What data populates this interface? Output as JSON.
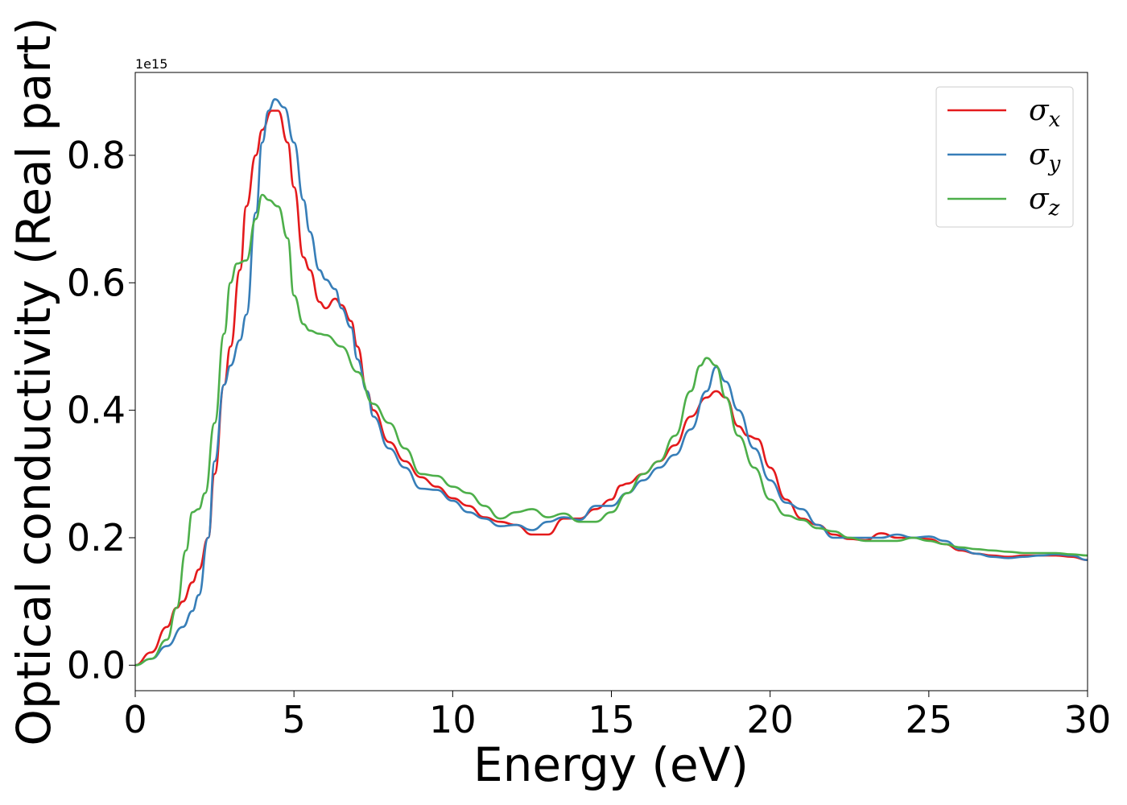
{
  "chart_data": {
    "type": "line",
    "title": "",
    "xlabel": "Energy (eV)",
    "ylabel": "Optical conductivity (Real part)",
    "y_offset_label": "1e15",
    "xlim": [
      0,
      30
    ],
    "ylim": [
      -0.04,
      0.93
    ],
    "xticks": [
      0,
      5,
      10,
      15,
      20,
      25,
      30
    ],
    "xtick_labels": [
      "0",
      "5",
      "10",
      "15",
      "20",
      "25",
      "30"
    ],
    "yticks": [
      0.0,
      0.2,
      0.4,
      0.6,
      0.8
    ],
    "ytick_labels": [
      "0.0",
      "0.2",
      "0.4",
      "0.6",
      "0.8"
    ],
    "grid": false,
    "legend_position": "top-right",
    "colors": {
      "x": "#e41a1c",
      "y": "#377eb8",
      "z": "#4daf4a"
    },
    "series": [
      {
        "key": "x",
        "name": "σx",
        "symbol": "σ",
        "subscript": "x",
        "x": [
          0,
          0.5,
          1.0,
          1.3,
          1.5,
          1.8,
          2.0,
          2.3,
          2.5,
          2.8,
          3.0,
          3.3,
          3.5,
          3.8,
          4.0,
          4.3,
          4.5,
          4.8,
          5.0,
          5.3,
          5.5,
          5.8,
          6.0,
          6.3,
          6.5,
          6.8,
          7.0,
          7.3,
          7.5,
          8.0,
          8.5,
          9.0,
          9.5,
          10.0,
          10.5,
          11.0,
          11.5,
          12.0,
          12.5,
          13.0,
          13.5,
          14.0,
          14.5,
          15.0,
          15.3,
          15.5,
          16.0,
          16.5,
          17.0,
          17.5,
          18.0,
          18.3,
          18.6,
          19.0,
          19.3,
          19.6,
          20.0,
          20.5,
          21.0,
          21.5,
          22.0,
          22.5,
          23.0,
          23.5,
          24.0,
          24.5,
          25.0,
          25.5,
          26.0,
          26.5,
          27.0,
          27.5,
          28.0,
          28.5,
          29.0,
          29.5,
          30.0
        ],
        "y": [
          0.0,
          0.02,
          0.06,
          0.09,
          0.1,
          0.13,
          0.15,
          0.2,
          0.3,
          0.44,
          0.5,
          0.62,
          0.72,
          0.8,
          0.84,
          0.87,
          0.87,
          0.82,
          0.75,
          0.64,
          0.62,
          0.57,
          0.56,
          0.575,
          0.565,
          0.54,
          0.5,
          0.43,
          0.4,
          0.35,
          0.32,
          0.295,
          0.28,
          0.262,
          0.25,
          0.232,
          0.225,
          0.22,
          0.205,
          0.205,
          0.23,
          0.23,
          0.245,
          0.26,
          0.282,
          0.285,
          0.3,
          0.32,
          0.345,
          0.39,
          0.42,
          0.43,
          0.42,
          0.375,
          0.36,
          0.355,
          0.31,
          0.26,
          0.23,
          0.22,
          0.205,
          0.198,
          0.196,
          0.207,
          0.2,
          0.2,
          0.198,
          0.19,
          0.18,
          0.175,
          0.172,
          0.17,
          0.172,
          0.172,
          0.172,
          0.17,
          0.165
        ]
      },
      {
        "key": "y",
        "name": "σy",
        "symbol": "σ",
        "subscript": "y",
        "x": [
          0,
          0.5,
          1.0,
          1.5,
          1.8,
          2.0,
          2.3,
          2.5,
          2.8,
          3.0,
          3.3,
          3.5,
          3.8,
          4.0,
          4.2,
          4.4,
          4.7,
          5.0,
          5.3,
          5.5,
          5.8,
          6.0,
          6.3,
          6.5,
          6.8,
          7.0,
          7.3,
          7.5,
          8.0,
          8.5,
          9.0,
          9.5,
          10.0,
          10.5,
          11.0,
          11.5,
          12.0,
          12.5,
          13.0,
          13.5,
          14.0,
          14.5,
          15.0,
          15.5,
          16.0,
          16.5,
          17.0,
          17.5,
          18.0,
          18.3,
          18.6,
          19.0,
          19.5,
          20.0,
          20.5,
          21.0,
          21.5,
          22.0,
          22.5,
          23.0,
          23.5,
          24.0,
          24.5,
          25.0,
          25.5,
          26.0,
          26.5,
          27.0,
          27.5,
          28.0,
          28.5,
          29.0,
          29.5,
          30.0
        ],
        "y": [
          0.0,
          0.01,
          0.03,
          0.06,
          0.085,
          0.11,
          0.2,
          0.32,
          0.44,
          0.47,
          0.51,
          0.55,
          0.71,
          0.82,
          0.87,
          0.888,
          0.875,
          0.82,
          0.73,
          0.68,
          0.62,
          0.605,
          0.59,
          0.56,
          0.53,
          0.48,
          0.43,
          0.39,
          0.34,
          0.31,
          0.277,
          0.275,
          0.258,
          0.24,
          0.23,
          0.218,
          0.22,
          0.212,
          0.225,
          0.232,
          0.228,
          0.25,
          0.25,
          0.27,
          0.29,
          0.31,
          0.33,
          0.37,
          0.43,
          0.468,
          0.445,
          0.4,
          0.34,
          0.29,
          0.255,
          0.245,
          0.22,
          0.2,
          0.2,
          0.2,
          0.2,
          0.205,
          0.2,
          0.202,
          0.195,
          0.182,
          0.175,
          0.17,
          0.168,
          0.17,
          0.172,
          0.174,
          0.172,
          0.165
        ]
      },
      {
        "key": "z",
        "name": "σz",
        "symbol": "σ",
        "subscript": "z",
        "x": [
          0,
          0.5,
          1.0,
          1.3,
          1.6,
          1.8,
          2.0,
          2.2,
          2.5,
          2.8,
          3.0,
          3.2,
          3.5,
          3.8,
          4.0,
          4.2,
          4.5,
          4.8,
          5.0,
          5.3,
          5.5,
          5.8,
          6.0,
          6.5,
          7.0,
          7.5,
          8.0,
          8.5,
          9.0,
          9.5,
          10.0,
          10.5,
          11.0,
          11.5,
          12.0,
          12.5,
          13.0,
          13.5,
          14.0,
          14.5,
          15.0,
          15.5,
          16.0,
          16.5,
          17.0,
          17.5,
          17.8,
          18.0,
          18.3,
          18.6,
          19.0,
          19.5,
          20.0,
          20.5,
          21.0,
          21.5,
          22.0,
          22.5,
          23.0,
          23.5,
          24.0,
          24.5,
          25.0,
          25.5,
          26.0,
          26.5,
          27.0,
          27.5,
          28.0,
          28.5,
          29.0,
          29.5,
          30.0
        ],
        "y": [
          0.0,
          0.01,
          0.04,
          0.09,
          0.18,
          0.24,
          0.245,
          0.27,
          0.38,
          0.52,
          0.6,
          0.63,
          0.635,
          0.7,
          0.738,
          0.73,
          0.72,
          0.67,
          0.58,
          0.535,
          0.525,
          0.52,
          0.518,
          0.5,
          0.46,
          0.41,
          0.38,
          0.34,
          0.3,
          0.297,
          0.28,
          0.27,
          0.25,
          0.23,
          0.24,
          0.245,
          0.232,
          0.238,
          0.225,
          0.225,
          0.24,
          0.27,
          0.3,
          0.32,
          0.36,
          0.43,
          0.47,
          0.482,
          0.47,
          0.42,
          0.36,
          0.31,
          0.26,
          0.235,
          0.228,
          0.215,
          0.21,
          0.2,
          0.195,
          0.195,
          0.195,
          0.2,
          0.195,
          0.19,
          0.185,
          0.182,
          0.18,
          0.178,
          0.176,
          0.176,
          0.176,
          0.174,
          0.172
        ]
      }
    ]
  }
}
